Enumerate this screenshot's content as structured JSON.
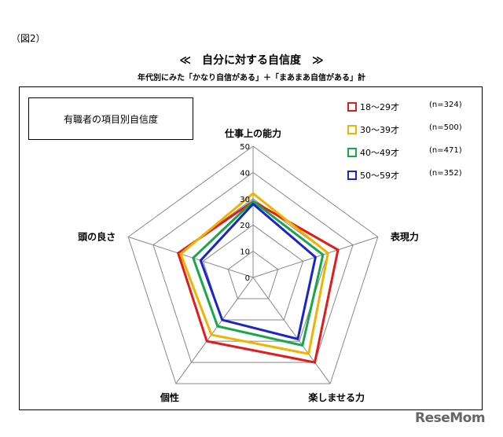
{
  "figure_label": "（図2）",
  "title": "≪　自分に対する自信度　≫",
  "subtitle": "年代別にみた「かなり自信がある」＋「まあまあ自信がある」計",
  "box_label": "有職者の項目別自信度",
  "watermark": "ReseMom",
  "chart_data": {
    "type": "radar",
    "title": "",
    "axes": [
      "仕事上の能力",
      "表現力",
      "楽しませる力",
      "個性",
      "頭の良さ"
    ],
    "ticks": [
      0,
      10,
      20,
      30,
      40,
      50
    ],
    "range": [
      0,
      50
    ],
    "grid": true,
    "legend_position": "top-right",
    "series": [
      {
        "name": "18～29才",
        "n": "(n=324)",
        "color": "#e31b1b",
        "values": [
          29,
          34,
          40,
          30,
          30
        ]
      },
      {
        "name": "30～39才",
        "n": "(n=500)",
        "color": "#f0b400",
        "values": [
          32,
          30,
          36,
          27,
          29
        ]
      },
      {
        "name": "40～49才",
        "n": "(n=471)",
        "color": "#1aa64a",
        "values": [
          29,
          28,
          32,
          23,
          24
        ]
      },
      {
        "name": "50～59才",
        "n": "(n=352)",
        "color": "#1c25c8",
        "values": [
          28,
          25,
          29,
          20,
          21
        ]
      }
    ]
  }
}
